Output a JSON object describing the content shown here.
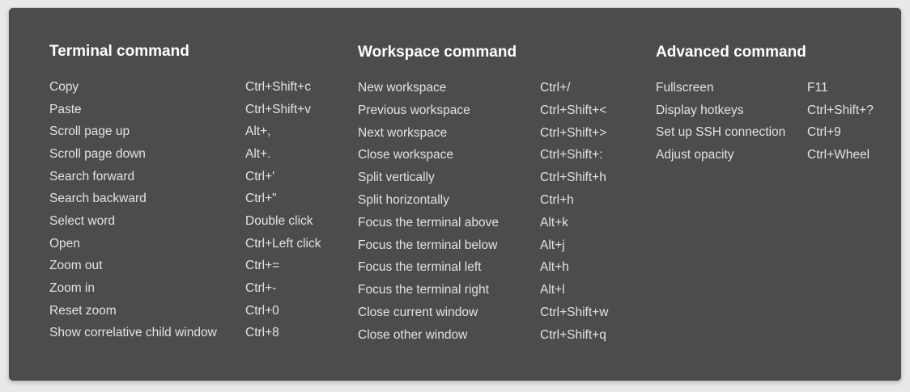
{
  "columns": {
    "terminal": {
      "title": "Terminal command",
      "rows": [
        {
          "label": "Copy",
          "key": "Ctrl+Shift+c"
        },
        {
          "label": "Paste",
          "key": "Ctrl+Shift+v"
        },
        {
          "label": "Scroll page up",
          "key": "Alt+,"
        },
        {
          "label": "Scroll page down",
          "key": "Alt+."
        },
        {
          "label": "Search forward",
          "key": "Ctrl+'"
        },
        {
          "label": "Search backward",
          "key": "Ctrl+\""
        },
        {
          "label": "Select word",
          "key": "Double click"
        },
        {
          "label": "Open",
          "key": "Ctrl+Left click"
        },
        {
          "label": "Zoom out",
          "key": "Ctrl+="
        },
        {
          "label": "Zoom in",
          "key": "Ctrl+-"
        },
        {
          "label": "Reset zoom",
          "key": "Ctrl+0"
        },
        {
          "label": "Show correlative child window",
          "key": "Ctrl+8"
        }
      ]
    },
    "workspace": {
      "title": "Workspace command",
      "rows": [
        {
          "label": "New workspace",
          "key": "Ctrl+/"
        },
        {
          "label": "Previous workspace",
          "key": "Ctrl+Shift+<"
        },
        {
          "label": "Next workspace",
          "key": "Ctrl+Shift+>"
        },
        {
          "label": "Close workspace",
          "key": "Ctrl+Shift+:"
        },
        {
          "label": "Split vertically",
          "key": "Ctrl+Shift+h"
        },
        {
          "label": "Split horizontally",
          "key": "Ctrl+h"
        },
        {
          "label": "Focus the terminal above",
          "key": "Alt+k"
        },
        {
          "label": "Focus the terminal below",
          "key": "Alt+j"
        },
        {
          "label": "Focus the terminal left",
          "key": "Alt+h"
        },
        {
          "label": "Focus the terminal right",
          "key": "Alt+l"
        },
        {
          "label": "Close current window",
          "key": "Ctrl+Shift+w"
        },
        {
          "label": "Close other window",
          "key": "Ctrl+Shift+q"
        }
      ]
    },
    "advanced": {
      "title": "Advanced command",
      "rows": [
        {
          "label": "Fullscreen",
          "key": "F11"
        },
        {
          "label": "Display hotkeys",
          "key": "Ctrl+Shift+?"
        },
        {
          "label": "Set up SSH connection",
          "key": "Ctrl+9"
        },
        {
          "label": "Adjust opacity",
          "key": "Ctrl+Wheel"
        }
      ]
    }
  }
}
